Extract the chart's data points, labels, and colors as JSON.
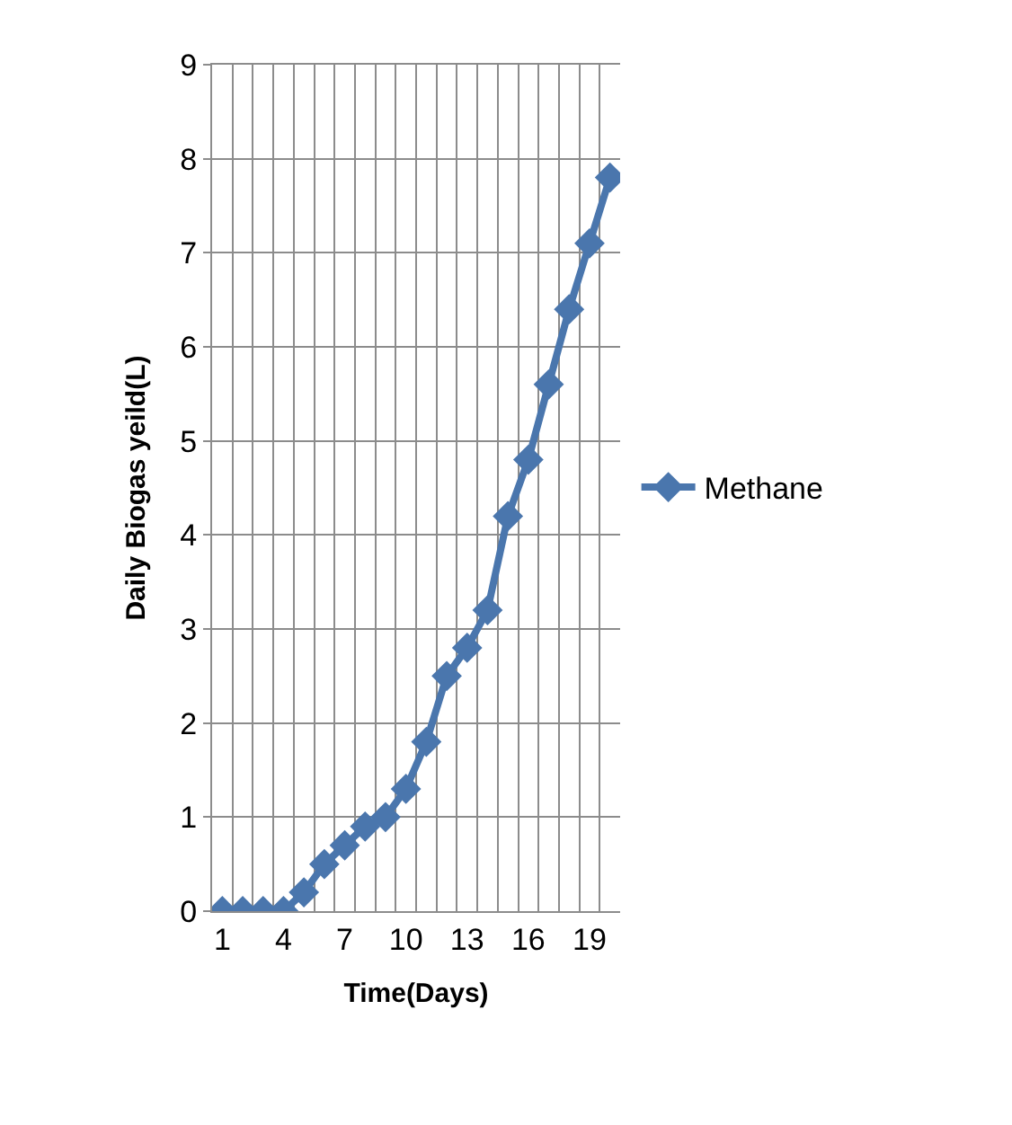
{
  "chart_data": {
    "type": "line",
    "xlabel": "Time(Days)",
    "ylabel": "Daily Biogas yeild(L)",
    "categories": [
      "1",
      null,
      null,
      "4",
      null,
      null,
      "7",
      null,
      null,
      "10",
      null,
      null,
      "13",
      null,
      null,
      "16",
      null,
      null,
      "19",
      null
    ],
    "series": [
      {
        "name": "Methane",
        "color": "#4a76ad",
        "values": [
          0,
          0,
          0,
          0,
          0.2,
          0.5,
          0.7,
          0.9,
          1.0,
          1.3,
          1.8,
          2.5,
          2.8,
          3.2,
          4.2,
          4.8,
          5.6,
          6.4,
          7.1,
          7.8
        ]
      }
    ],
    "ylim": [
      0,
      9
    ],
    "yticks": [
      0,
      1,
      2,
      3,
      4,
      5,
      6,
      7,
      8,
      9
    ],
    "grid": true,
    "legend": "right",
    "marker": "diamond",
    "line_style": "solid"
  }
}
